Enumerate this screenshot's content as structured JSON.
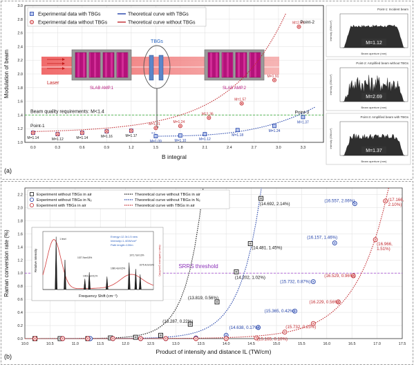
{
  "chart_data": [
    {
      "type": "scatter",
      "panel_label": "(a)",
      "xlabel": "B integral",
      "ylabel": "Modulation of beam",
      "xlim": [
        -0.1,
        3.55
      ],
      "ylim": [
        1.0,
        3.0
      ],
      "xticks": [
        "0.0",
        "0.3",
        "0.6",
        "0.9",
        "1.2",
        "1.5",
        "1.8",
        "2.1",
        "2.4",
        "2.7",
        "3.0",
        "3.3"
      ],
      "yticks": [
        "1.0",
        "1.2",
        "1.4",
        "1.6",
        "1.8",
        "2.0",
        "2.2",
        "2.4",
        "2.6",
        "2.8",
        "3.0"
      ],
      "grid": true,
      "legend": [
        "Experimental data with TBGs",
        "Theoretical curve with TBGs",
        "Experimental data without TBGs",
        "Theoretical curve without TBGs"
      ],
      "legend_position": "top-left",
      "series": [
        {
          "name": "Experimental data with TBGs",
          "marker": "square",
          "color": "#1f3fa8",
          "x": [
            0.0,
            0.3,
            0.6,
            0.9,
            1.2,
            1.5,
            1.8,
            2.1,
            2.5,
            2.95,
            3.3
          ],
          "y": [
            1.14,
            1.12,
            1.14,
            1.16,
            1.17,
            1.09,
            1.1,
            1.12,
            1.18,
            1.24,
            1.37
          ]
        },
        {
          "name": "Experimental data without TBGs",
          "marker": "circle",
          "color": "#c0282d",
          "x": [
            0.0,
            0.3,
            0.6,
            0.9,
            1.2,
            1.5,
            1.8,
            2.15,
            2.55,
            2.95,
            3.25
          ],
          "y": [
            1.14,
            1.12,
            1.14,
            1.16,
            1.17,
            1.21,
            1.24,
            1.36,
            1.57,
            1.91,
            2.69
          ]
        }
      ],
      "point_labels_with_tbgs": [
        "M=1.14",
        "M=1.12",
        "M=1.14",
        "M=1.16",
        "M=1.17",
        "M=1.09",
        "M=1.10",
        "M=1.12",
        "M=1.18",
        "M=1.24",
        "M=1.37"
      ],
      "point_labels_without_tbgs": [
        "M=1.21",
        "M=1.24",
        "M=1.36",
        "M=1.57",
        "M=1.91",
        "M=2.69"
      ],
      "threshold": {
        "y": 1.4,
        "label": "Beam quality requirements: M<1.4"
      },
      "annotations": {
        "point1": "Point-1",
        "point2": "Point-2",
        "point3": "Point-3"
      },
      "schematic": {
        "laser": "Laser",
        "amp1": "SLAB AMP.1",
        "amp2": "SLAB AMP.2",
        "tbgs": "TBGs"
      }
    },
    {
      "type": "scatter",
      "panel_label": "(b)",
      "xlabel": "Product of intensity and distance IL (TW/cm)",
      "ylabel": "Raman conversion rate (%)",
      "xlim": [
        10.0,
        17.5
      ],
      "ylim": [
        0.0,
        2.3
      ],
      "xticks": [
        "10.0",
        "10.5",
        "11.0",
        "11.5",
        "12.0",
        "12.5",
        "13.0",
        "13.5",
        "14.0",
        "14.5",
        "15.0",
        "15.5",
        "16.0",
        "16.5",
        "17.0",
        "17.5"
      ],
      "yticks": [
        "0.0",
        "0.2",
        "0.4",
        "0.6",
        "0.8",
        "1.0",
        "1.2",
        "1.4",
        "1.6",
        "1.8",
        "2.0",
        "2.2"
      ],
      "grid": true,
      "legend": [
        "Experiment without TBGs in air",
        "Theoretical curve without TBGs in air",
        "Experiment without TBGs in N₂",
        "Theoretical curve without TBGs in N₂",
        "Experiment with TBGs in air",
        "Theoretical curve with TBGs in air"
      ],
      "legend_position": "top-left",
      "series": [
        {
          "name": "Experiment without TBGs in air",
          "marker": "square",
          "color": "#111111",
          "x": [
            10.2,
            10.7,
            11.25,
            11.7,
            12.2,
            12.7,
            13.287,
            13.819,
            14.202,
            14.481,
            14.692
          ],
          "y": [
            0.0,
            0.0,
            0.0,
            0.01,
            0.02,
            0.05,
            0.22,
            0.56,
            1.02,
            1.45,
            2.14
          ]
        },
        {
          "name": "Experiment without TBGs in N₂",
          "marker": "circle",
          "color": "#1f3fa8",
          "x": [
            10.75,
            11.3,
            11.75,
            12.3,
            12.8,
            13.4,
            14.0,
            14.638,
            15.365,
            15.732,
            16.157,
            16.557
          ],
          "y": [
            0.0,
            0.0,
            0.0,
            0.0,
            0.0,
            0.01,
            0.05,
            0.17,
            0.42,
            0.87,
            1.46,
            2.06
          ]
        },
        {
          "name": "Experiment with TBGs in air",
          "marker": "circle",
          "color": "#c0282d",
          "x": [
            10.2,
            10.75,
            11.25,
            11.75,
            12.3,
            12.8,
            13.4,
            14.0,
            14.6,
            15.165,
            15.732,
            16.229,
            16.529,
            16.966,
            17.166
          ],
          "y": [
            0.0,
            0.0,
            0.0,
            0.0,
            0.0,
            0.0,
            0.0,
            0.0,
            0.01,
            0.1,
            0.23,
            0.56,
            0.96,
            1.51,
            2.1
          ]
        }
      ],
      "point_labels_black": [
        "(13.287, 0.22%)",
        "(13.819, 0.56%)",
        "(14.202, 1.02%)",
        "(14.481, 1.45%)",
        "(14.692, 2.14%)"
      ],
      "point_labels_blue": [
        "(14.638, 0.17%)",
        "(15.365, 0.42%)",
        "(15.732, 0.87%)",
        "(16.157, 1.46%)",
        "(16.557, 2.06%)"
      ],
      "point_labels_red": [
        "(15.165, 0.10%)",
        "(15.732, 0.23%)",
        "(16.229, 0.56%)",
        "(16.529, 0.96%)",
        "(16.966,\n1.51%)",
        "(17.166,\n2.10%)"
      ],
      "threshold": {
        "y": 1.0,
        "label": "SRRS threshold"
      }
    }
  ],
  "side_panels": [
    {
      "title": "Point-1: Incident beam",
      "value": "M=1.12",
      "xlabel": "Beam aperture (mm)",
      "ylabel": "Intensity (GW/cm²)"
    },
    {
      "title": "Point-2: Amplified beam without TBGs",
      "value": "M=2.69",
      "xlabel": "Beam aperture (mm)",
      "ylabel": "Intensity (GW/cm²)"
    },
    {
      "title": "Point-3: Amplified beam with TBGs",
      "value": "M=1.37",
      "xlabel": "Beam aperture (mm)",
      "ylabel": "Intensity (GW/cm²)"
    }
  ],
  "inset": {
    "xlabel": "Frequency Shift (cm⁻¹)",
    "ylabel_left": "Relative Intensity",
    "ylabel_right": "Gain Coefficient (cm/GW)",
    "info": [
      "Energy=12.3±1.5 new",
      "Intensity=1.4GW/cm²",
      "Path length=130m"
    ],
    "peak_labels": [
      "1 level",
      "1027.9cm/18%",
      "1063.4cm/11%",
      "1089.4cm/15%",
      "1071.7cm/13%",
      "1075.4cm/13%"
    ]
  }
}
